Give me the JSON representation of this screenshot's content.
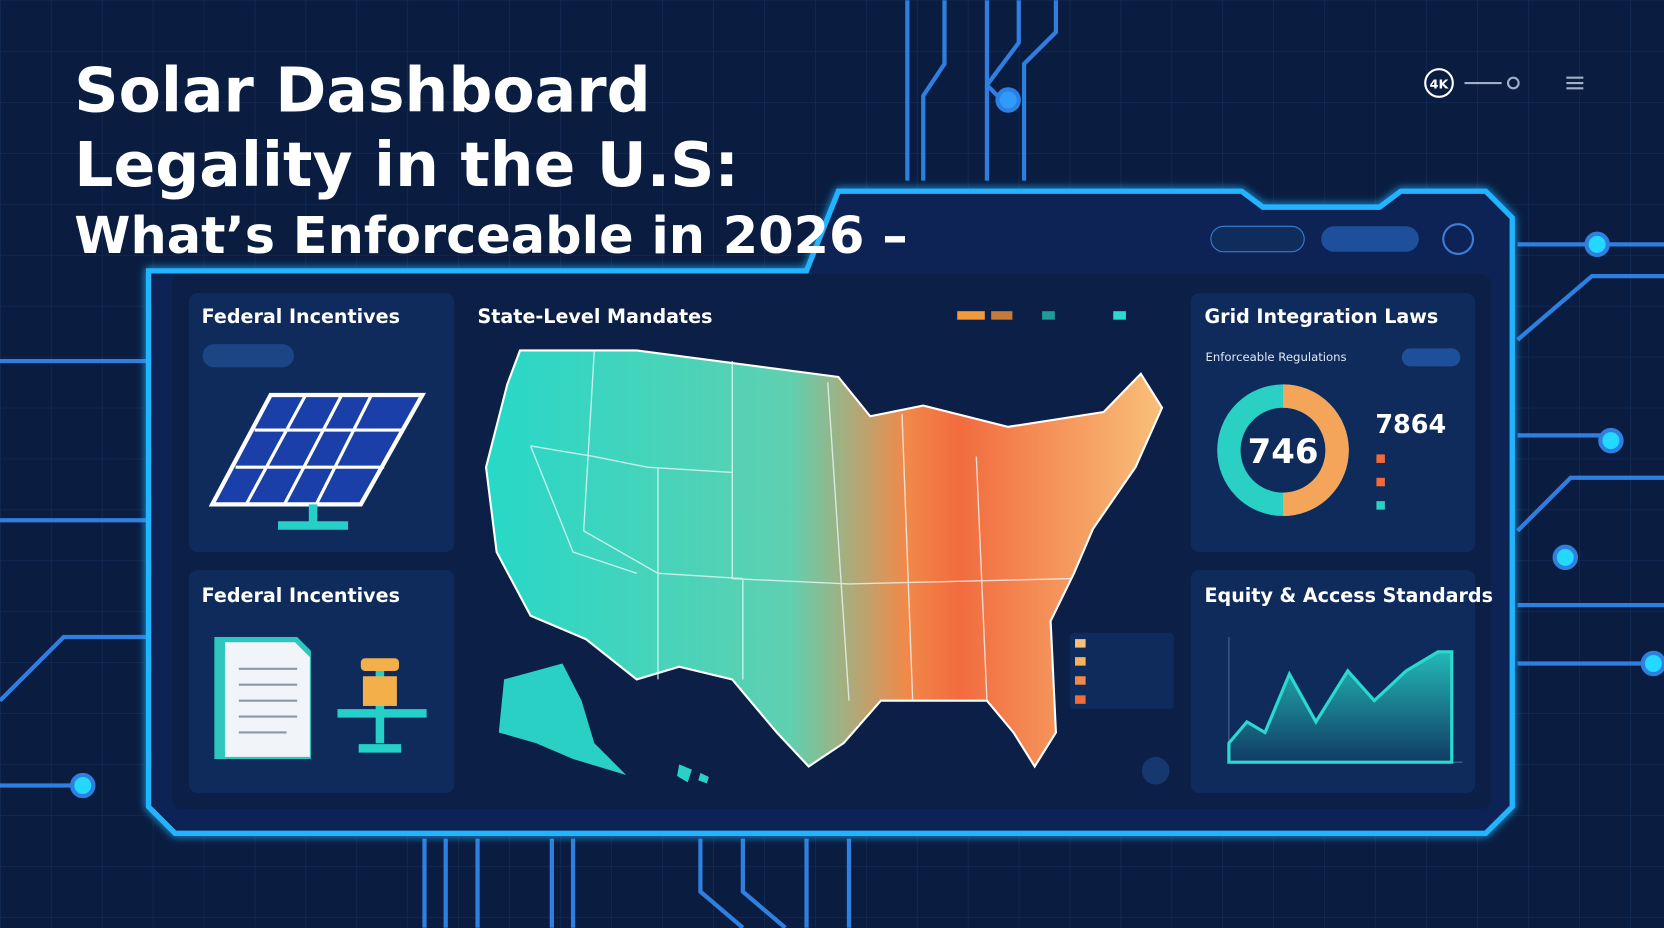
{
  "header": {
    "title_lines": [
      "Solar Dashboard",
      "Legality in the U.S:",
      "What’s Enforceable in 2026 –"
    ],
    "badge": "4K"
  },
  "panels": [
    {
      "title": "Federal Incentives"
    },
    {
      "title": "State-Level Mandates"
    },
    {
      "title": "Grid Integration Laws",
      "subtitle": "Enforceable Regulations",
      "gauge_value": "746",
      "stat_value": "7864"
    },
    {
      "title": "Federal Incentives"
    },
    {
      "title": "Equity & Access Standards"
    }
  ]
}
